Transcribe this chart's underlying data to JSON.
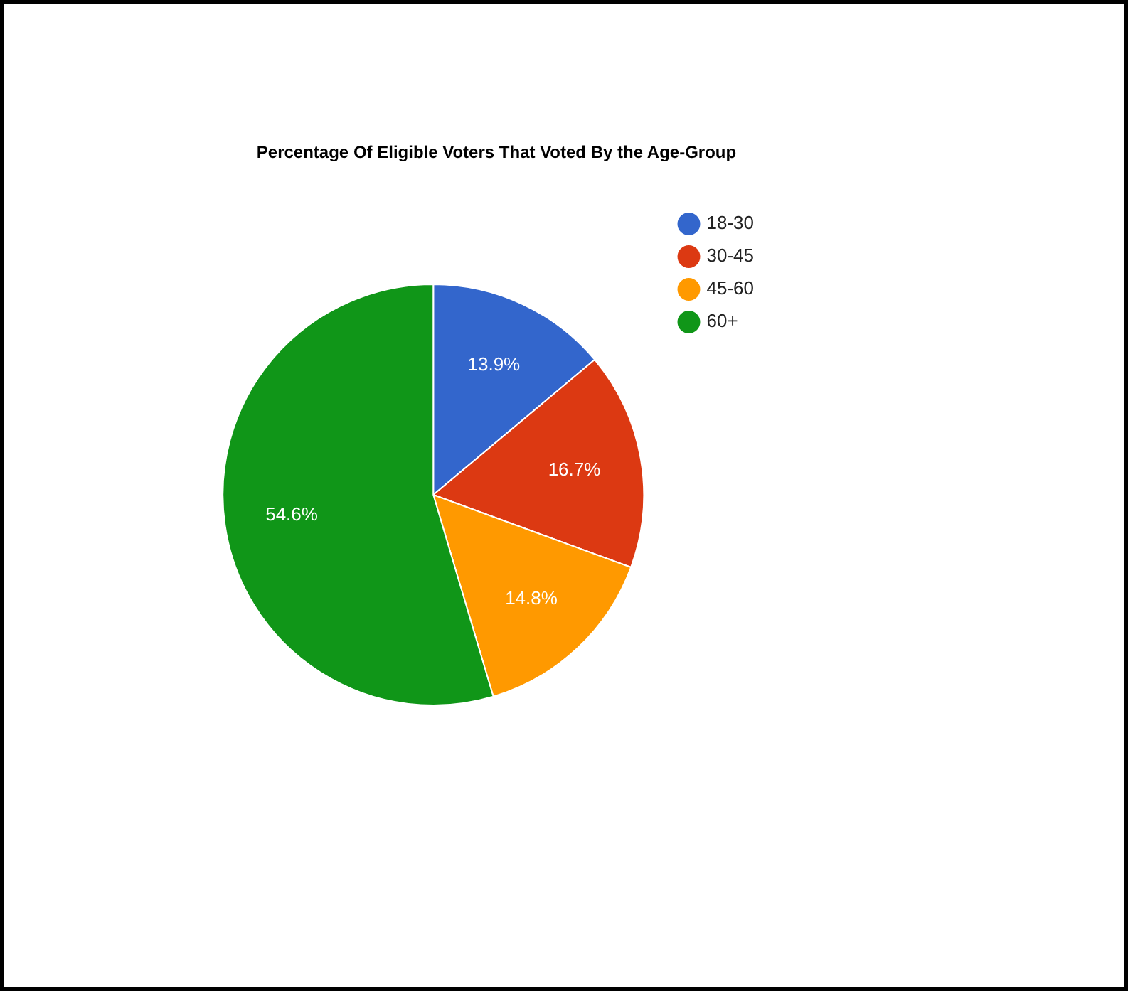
{
  "chart_data": {
    "type": "pie",
    "title": "Percentage Of Eligible Voters That Voted By the Age-Group",
    "categories": [
      "18-30",
      "30-45",
      "45-60",
      "60+"
    ],
    "values": [
      13.9,
      16.7,
      14.8,
      54.6
    ],
    "colors": [
      "#3366cc",
      "#dc3912",
      "#ff9900",
      "#109618"
    ],
    "value_labels": [
      "13.9%",
      "16.7%",
      "14.8%",
      "54.6%"
    ],
    "legend": "top right"
  }
}
